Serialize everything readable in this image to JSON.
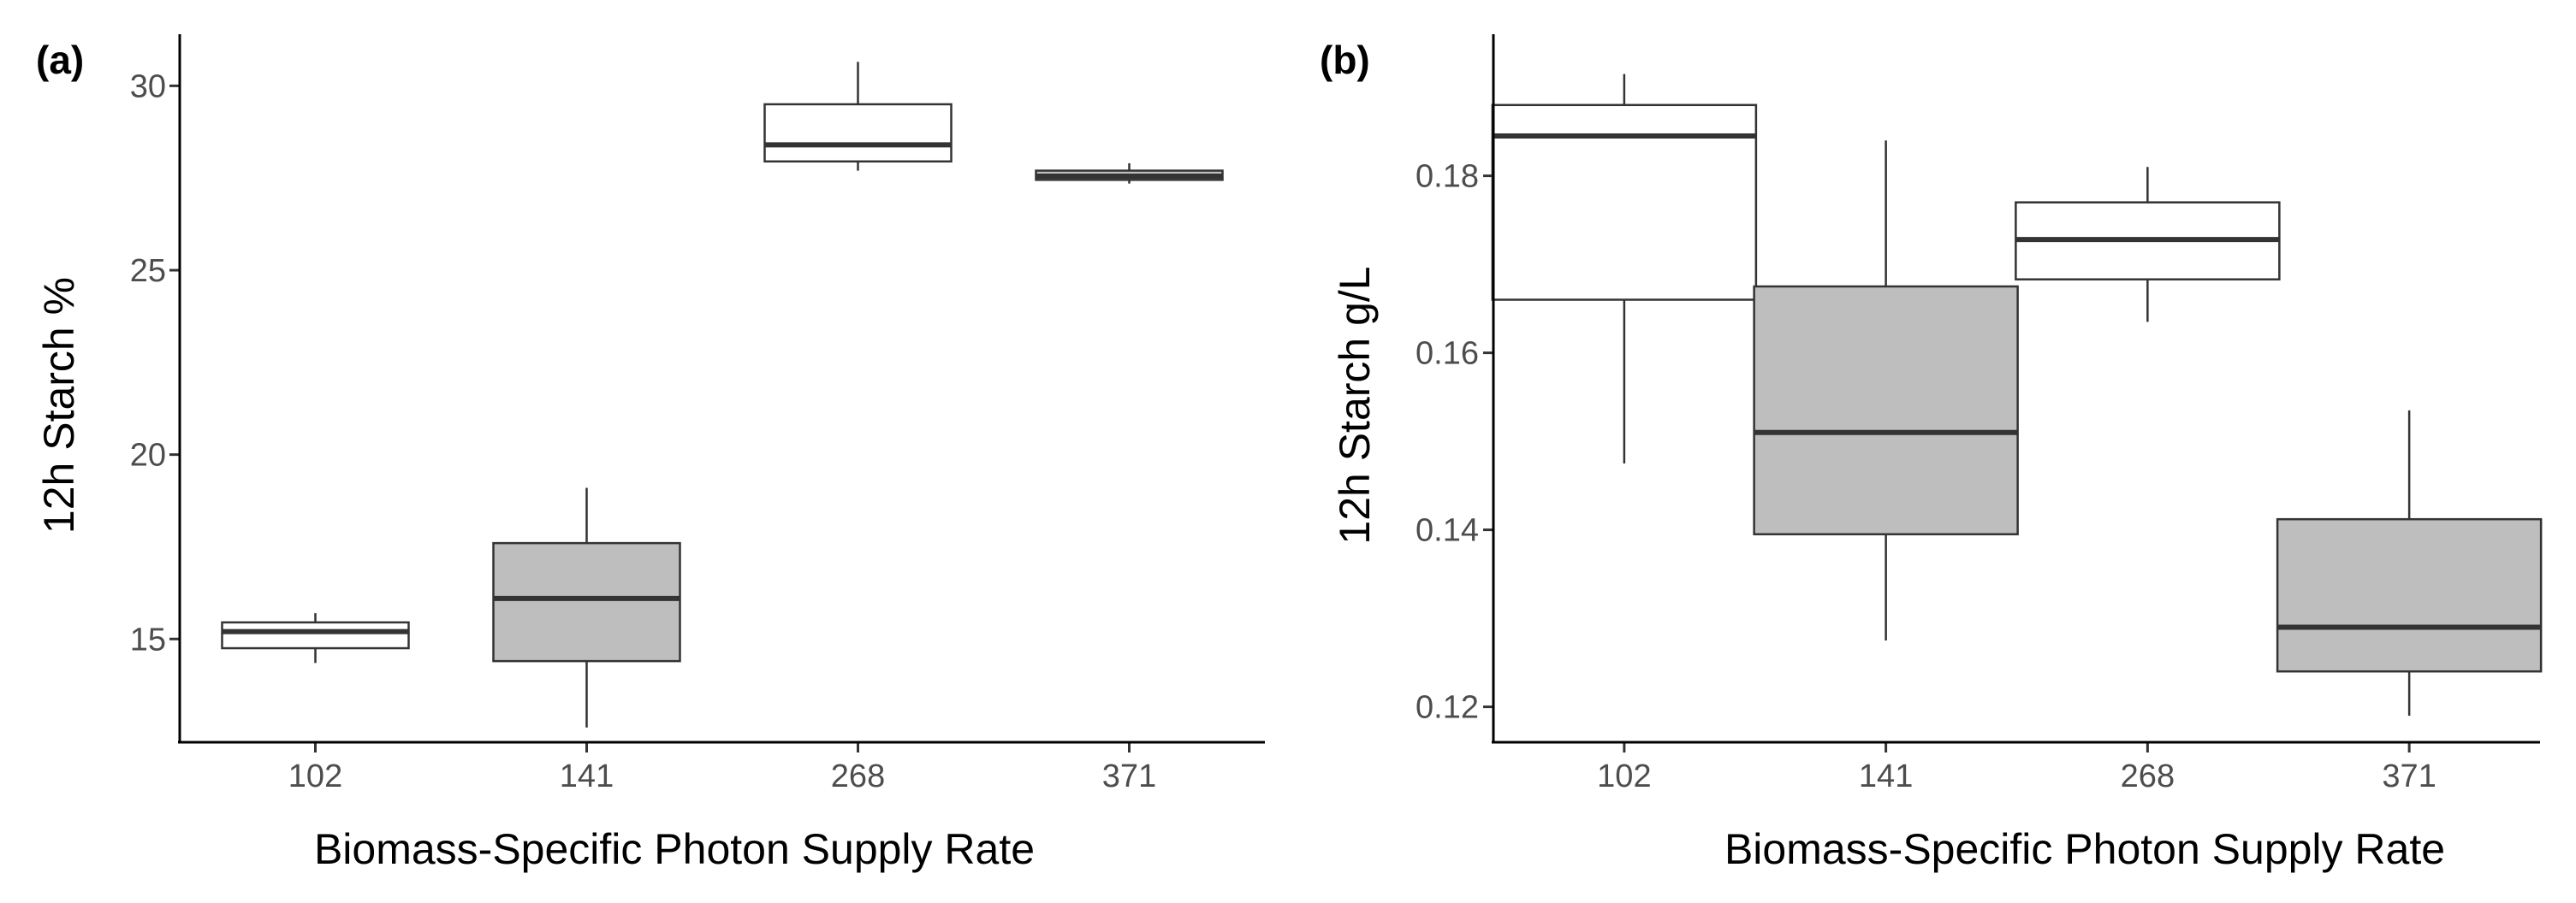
{
  "chart_data": [
    {
      "type": "boxplot",
      "panel_label": "(a)",
      "xlabel": "Biomass-Specific Photon Supply Rate",
      "ylabel": "12h Starch %",
      "categories": [
        "102",
        "141",
        "268",
        "371"
      ],
      "yticks": [
        15,
        20,
        25,
        30
      ],
      "ytick_labels": [
        "15",
        "20",
        "25",
        "30"
      ],
      "ylim": [
        12.2,
        31.4
      ],
      "boxes": [
        {
          "category": "102",
          "min": 14.35,
          "q1": 14.75,
          "median": 15.2,
          "q3": 15.45,
          "max": 15.7,
          "fill": "#ffffff"
        },
        {
          "category": "141",
          "min": 12.6,
          "q1": 14.4,
          "median": 16.1,
          "q3": 17.6,
          "max": 19.1,
          "fill": "#bebebe"
        },
        {
          "category": "268",
          "min": 27.7,
          "q1": 27.95,
          "median": 28.4,
          "q3": 29.5,
          "max": 30.65,
          "fill": "#ffffff"
        },
        {
          "category": "371",
          "min": 27.35,
          "q1": 27.45,
          "median": 27.55,
          "q3": 27.7,
          "max": 27.9,
          "fill": "#bebebe"
        }
      ]
    },
    {
      "type": "boxplot",
      "panel_label": "(b)",
      "xlabel": "Biomass-Specific Photon Supply Rate",
      "ylabel": "12h Starch g/L",
      "categories": [
        "102",
        "141",
        "268",
        "371"
      ],
      "yticks": [
        0.12,
        0.14,
        0.16,
        0.18
      ],
      "ytick_labels": [
        "0.12",
        "0.14",
        "0.16",
        "0.18"
      ],
      "ylim": [
        0.116,
        0.196
      ],
      "boxes": [
        {
          "category": "102",
          "min": 0.1475,
          "q1": 0.166,
          "median": 0.1845,
          "q3": 0.188,
          "max": 0.1915,
          "fill": "#ffffff"
        },
        {
          "category": "141",
          "min": 0.1275,
          "q1": 0.1395,
          "median": 0.151,
          "q3": 0.1675,
          "max": 0.184,
          "fill": "#bebebe"
        },
        {
          "category": "268",
          "min": 0.1635,
          "q1": 0.1683,
          "median": 0.1728,
          "q3": 0.177,
          "max": 0.181,
          "fill": "#ffffff"
        },
        {
          "category": "371",
          "min": 0.119,
          "q1": 0.124,
          "median": 0.129,
          "q3": 0.1412,
          "max": 0.1535,
          "fill": "#bebebe"
        }
      ]
    }
  ],
  "colors": {
    "line": "#333333",
    "axis": "#000000",
    "tick_text": "#4d4d4d"
  }
}
